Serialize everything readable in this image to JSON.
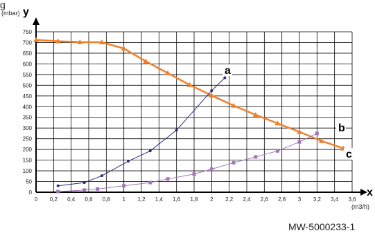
{
  "corner_text": "g",
  "caption": "MW-5000233-1",
  "chart_data": {
    "type": "line",
    "title": "",
    "x_letter": "x",
    "y_letter": "y",
    "x_unit": "(m3/h)",
    "y_unit": "(mbar)",
    "xlim": [
      0,
      3.6
    ],
    "ylim": [
      0,
      750
    ],
    "grid": true,
    "x_ticks": [
      "0",
      "0,2",
      "0,4",
      "0,6",
      "0,8",
      "1",
      "1,2",
      "1,4",
      "1,6",
      "1,8",
      "2",
      "2,2",
      "2,4",
      "2,6",
      "2,8",
      "3",
      "3,2",
      "3,4",
      "3,6"
    ],
    "y_ticks": [
      "0",
      "50",
      "100",
      "150",
      "200",
      "250",
      "300",
      "350",
      "400",
      "450",
      "500",
      "550",
      "600",
      "650",
      "700",
      "750"
    ],
    "series": [
      {
        "name": "c",
        "color": "#f07f2a",
        "marker": "triangle",
        "points": [
          [
            0,
            712
          ],
          [
            0.25,
            706
          ],
          [
            0.5,
            702
          ],
          [
            0.75,
            701
          ],
          [
            1.0,
            672
          ],
          [
            1.25,
            612
          ],
          [
            1.5,
            557
          ],
          [
            1.75,
            502
          ],
          [
            2.0,
            452
          ],
          [
            2.25,
            405
          ],
          [
            2.5,
            362
          ],
          [
            2.75,
            322
          ],
          [
            3.0,
            282
          ],
          [
            3.25,
            240
          ],
          [
            3.5,
            205
          ]
        ]
      },
      {
        "name": "a",
        "color": "#2a2a78",
        "marker": "dot",
        "points": [
          [
            0.25,
            30
          ],
          [
            0.55,
            45
          ],
          [
            0.75,
            77
          ],
          [
            1.05,
            145
          ],
          [
            1.3,
            193
          ],
          [
            1.6,
            290
          ],
          [
            2.0,
            475
          ],
          [
            2.15,
            535
          ]
        ]
      },
      {
        "name": "b",
        "color": "#a078b8",
        "marker": "square",
        "points": [
          [
            0.25,
            3
          ],
          [
            0.55,
            10
          ],
          [
            0.7,
            15
          ],
          [
            1.0,
            30
          ],
          [
            1.3,
            45
          ],
          [
            1.5,
            62
          ],
          [
            1.8,
            85
          ],
          [
            2.0,
            108
          ],
          [
            2.25,
            138
          ],
          [
            2.5,
            165
          ],
          [
            2.75,
            193
          ],
          [
            3.0,
            235
          ],
          [
            3.2,
            275
          ]
        ]
      }
    ]
  }
}
